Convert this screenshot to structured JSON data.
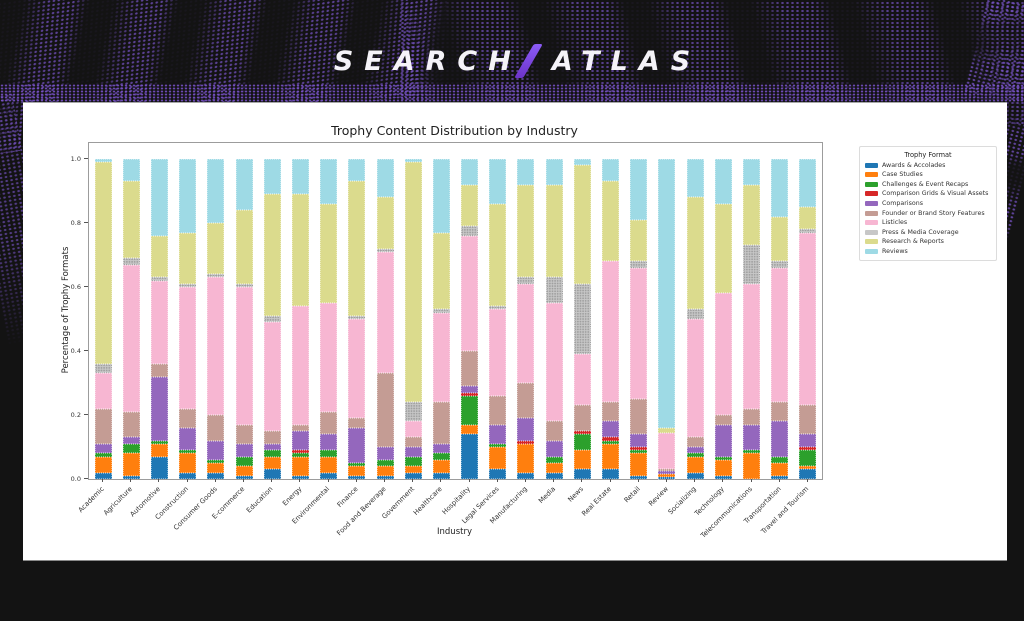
{
  "header": {
    "logo_left": "SEARCH",
    "logo_right": "ATLAS"
  },
  "colors": {
    "page_background": "#131313",
    "panel_background": "#ffffff",
    "accent_purple": "#7c4fd0",
    "logo_text": "#f5f3f8"
  },
  "chart_data": {
    "type": "bar",
    "stacked": true,
    "normalized": true,
    "title": "Trophy Content Distribution by Industry",
    "xlabel": "Industry",
    "ylabel": "Percentage of Trophy Formats",
    "ylim": [
      0,
      1.05
    ],
    "ytick_labels": [
      "0.0",
      "0.2",
      "0.4",
      "0.6",
      "0.8",
      "1.0"
    ],
    "grid": false,
    "legend_title": "Trophy Format",
    "legend_position": "outside-right",
    "categories": [
      "Academic",
      "Agriculture",
      "Automotive",
      "Construction",
      "Consumer Goods",
      "E-commerce",
      "Education",
      "Energy",
      "Environmental",
      "Finance",
      "Food and Beverage",
      "Government",
      "Healthcare",
      "Hospitality",
      "Legal Services",
      "Manufacturing",
      "Media",
      "News",
      "Real Estate",
      "Retail",
      "Review",
      "Socializing",
      "Technology",
      "Telecommunications",
      "Transportation",
      "Travel and Tourism"
    ],
    "series": [
      {
        "name": "Awards & Accolades",
        "color": "#1f77b4",
        "values": [
          0.02,
          0.01,
          0.07,
          0.02,
          0.02,
          0.01,
          0.03,
          0.01,
          0.02,
          0.01,
          0.01,
          0.02,
          0.02,
          0.14,
          0.03,
          0.02,
          0.02,
          0.03,
          0.03,
          0.01,
          0.005,
          0.02,
          0.01,
          0,
          0.01,
          0.03
        ]
      },
      {
        "name": "Case Studies",
        "color": "#ff7f0e",
        "values": [
          0.05,
          0.07,
          0.04,
          0.06,
          0.03,
          0.03,
          0.04,
          0.06,
          0.05,
          0.03,
          0.03,
          0.02,
          0.04,
          0.03,
          0.07,
          0.09,
          0.03,
          0.06,
          0.08,
          0.07,
          0.01,
          0.05,
          0.05,
          0.08,
          0.04,
          0.01
        ]
      },
      {
        "name": "Challenges & Event Recaps",
        "color": "#2ca02c",
        "values": [
          0.01,
          0.03,
          0.01,
          0.01,
          0.01,
          0.03,
          0.02,
          0.01,
          0.02,
          0.01,
          0.02,
          0.03,
          0.02,
          0.09,
          0.01,
          0,
          0.02,
          0.05,
          0.01,
          0.01,
          0,
          0.01,
          0.01,
          0.01,
          0.02,
          0.05
        ]
      },
      {
        "name": "Comparison Grids & Visual Assets",
        "color": "#d62728",
        "values": [
          0,
          0,
          0,
          0,
          0,
          0,
          0,
          0.01,
          0,
          0,
          0,
          0,
          0,
          0.01,
          0,
          0.01,
          0,
          0.01,
          0.01,
          0.01,
          0,
          0,
          0,
          0,
          0,
          0.01
        ]
      },
      {
        "name": "Comparisons",
        "color": "#9467bd",
        "values": [
          0.03,
          0.02,
          0.2,
          0.07,
          0.06,
          0.04,
          0.02,
          0.06,
          0.05,
          0.11,
          0.04,
          0.03,
          0.03,
          0.02,
          0.06,
          0.07,
          0.05,
          0,
          0.05,
          0.04,
          0.01,
          0.02,
          0.1,
          0.08,
          0.11,
          0.04
        ]
      },
      {
        "name": "Founder or Brand Story Features",
        "color": "#c49c94",
        "values": [
          0.11,
          0.08,
          0.04,
          0.06,
          0.08,
          0.06,
          0.04,
          0.02,
          0.07,
          0.03,
          0.23,
          0.03,
          0.13,
          0.11,
          0.09,
          0.11,
          0.06,
          0.08,
          0.06,
          0.11,
          0.005,
          0.03,
          0.03,
          0.05,
          0.06,
          0.09
        ]
      },
      {
        "name": "Listicles",
        "color": "#f7b6d2",
        "values": [
          0.11,
          0.46,
          0.26,
          0.38,
          0.43,
          0.43,
          0.34,
          0.37,
          0.34,
          0.31,
          0.38,
          0.05,
          0.28,
          0.36,
          0.27,
          0.31,
          0.37,
          0.16,
          0.44,
          0.41,
          0.115,
          0.37,
          0.38,
          0.39,
          0.42,
          0.54
        ]
      },
      {
        "name": "Press & Media Coverage",
        "color": "#c7c7c7",
        "pattern": "dots",
        "values": [
          0.03,
          0.02,
          0.01,
          0.01,
          0.01,
          0.01,
          0.02,
          0,
          0,
          0.01,
          0.01,
          0.06,
          0.01,
          0.03,
          0.01,
          0.02,
          0.08,
          0.22,
          0,
          0.02,
          0,
          0.03,
          0,
          0.12,
          0.02,
          0.01
        ]
      },
      {
        "name": "Research & Reports",
        "color": "#dbdb8d",
        "values": [
          0.63,
          0.24,
          0.13,
          0.16,
          0.16,
          0.23,
          0.38,
          0.35,
          0.31,
          0.42,
          0.16,
          0.75,
          0.24,
          0.13,
          0.32,
          0.29,
          0.29,
          0.37,
          0.25,
          0.13,
          0.015,
          0.35,
          0.28,
          0.19,
          0.14,
          0.07
        ]
      },
      {
        "name": "Reviews",
        "color": "#9edae5",
        "values": [
          0.01,
          0.07,
          0.24,
          0.23,
          0.2,
          0.16,
          0.11,
          0.11,
          0.14,
          0.07,
          0.12,
          0.01,
          0.23,
          0.08,
          0.14,
          0.08,
          0.08,
          0.02,
          0.07,
          0.19,
          0.84,
          0.12,
          0.14,
          0.08,
          0.18,
          0.15
        ]
      }
    ]
  }
}
